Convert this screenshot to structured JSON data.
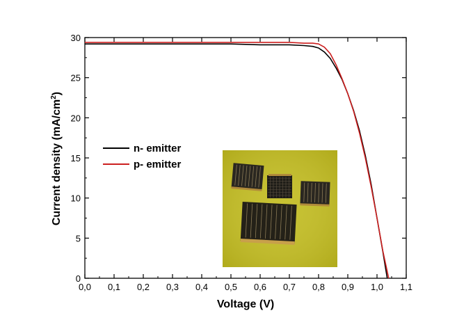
{
  "chart_data": {
    "type": "line",
    "xlabel": "Voltage (V)",
    "ylabel_main": "Current density (mA/cm",
    "ylabel_sup": "2",
    "ylabel_close": ")",
    "xlim": [
      0.0,
      1.1
    ],
    "ylim": [
      0,
      30
    ],
    "xticks": [
      0.0,
      0.1,
      0.2,
      0.3,
      0.4,
      0.5,
      0.6,
      0.7,
      0.8,
      0.9,
      1.0,
      1.1
    ],
    "xtick_labels": [
      "0,0",
      "0,1",
      "0,2",
      "0,3",
      "0,4",
      "0,5",
      "0,6",
      "0,7",
      "0,8",
      "0,9",
      "1,0",
      "1,1"
    ],
    "yticks": [
      0,
      5,
      10,
      15,
      20,
      25,
      30
    ],
    "ytick_labels": [
      "0",
      "5",
      "10",
      "15",
      "20",
      "25",
      "30"
    ],
    "grid": false,
    "legend_position": "center-left",
    "series": [
      {
        "name": "n- emitter",
        "color": "#000000",
        "x": [
          0.0,
          0.1,
          0.2,
          0.3,
          0.4,
          0.5,
          0.6,
          0.7,
          0.75,
          0.78,
          0.8,
          0.82,
          0.84,
          0.86,
          0.88,
          0.9,
          0.92,
          0.94,
          0.96,
          0.98,
          1.0,
          1.02,
          1.035
        ],
        "y": [
          29.2,
          29.2,
          29.2,
          29.2,
          29.2,
          29.2,
          29.1,
          29.1,
          29.0,
          28.9,
          28.7,
          28.2,
          27.4,
          26.2,
          24.8,
          23.0,
          20.9,
          18.4,
          15.3,
          11.7,
          7.5,
          3.3,
          0.0
        ]
      },
      {
        "name": "p- emitter",
        "color": "#cc1f1f",
        "x": [
          0.0,
          0.1,
          0.2,
          0.3,
          0.4,
          0.5,
          0.6,
          0.7,
          0.75,
          0.78,
          0.8,
          0.82,
          0.84,
          0.86,
          0.88,
          0.9,
          0.92,
          0.94,
          0.96,
          0.98,
          1.0,
          1.02,
          1.04
        ],
        "y": [
          29.4,
          29.4,
          29.4,
          29.4,
          29.4,
          29.4,
          29.4,
          29.4,
          29.3,
          29.3,
          29.2,
          28.8,
          28.0,
          26.6,
          24.9,
          23.0,
          20.8,
          18.1,
          15.0,
          11.4,
          7.5,
          3.4,
          0.0
        ]
      }
    ]
  },
  "inset_photo": {
    "description_icon": "solar-cell-samples-photo",
    "background_color": "#c0bb1f"
  }
}
